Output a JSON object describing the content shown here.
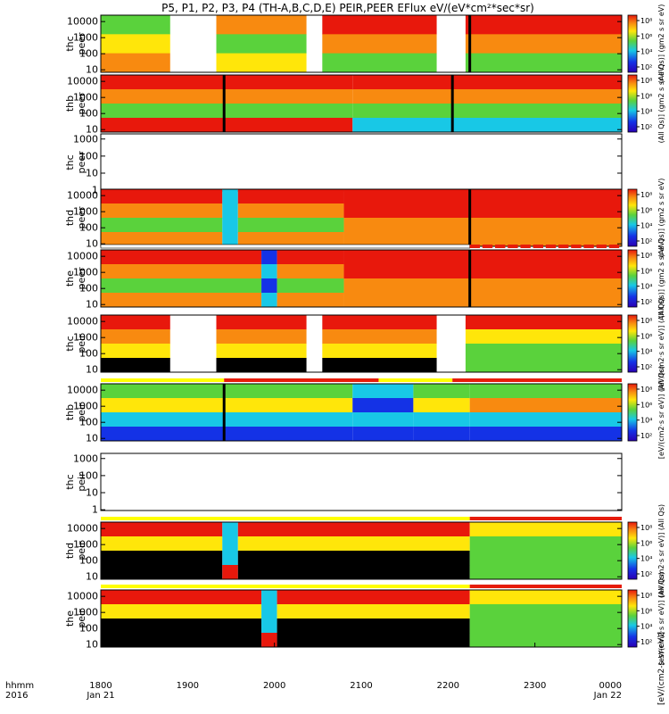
{
  "title": "P5, P1, P2, P3, P4 (TH-A,B,C,D,E) PEIR,PEER EFlux eV/(eV*cm²*sec*sr)",
  "time_axis": {
    "row_label": "hhmm",
    "year_label": "2016",
    "ticks": [
      "1800",
      "1900",
      "2000",
      "2100",
      "2200",
      "2300",
      "0000"
    ],
    "date_labels": [
      "Jan 21",
      "Jan 22"
    ],
    "start_hour": 18.0,
    "end_hour": 24.0
  },
  "y_tick_labels": [
    "10000",
    "1000",
    "100",
    "10",
    "1"
  ],
  "colorbar_tick_labels": [
    "10⁸",
    "10⁶",
    "10⁴",
    "10²"
  ],
  "colorbar_titles": {
    "peer": "(All Qs)] (gm2 s sr eV)",
    "peir": "[eV/(cm2·s sr eV)] (All Qs)"
  },
  "bottom_colorbar_label": "[eV/(cm2-s-sr-eV)]",
  "colors": {
    "black": "#000000",
    "red": "#e8180c",
    "orange": "#f88a10",
    "yellow": "#ffe60a",
    "green": "#5ad23c",
    "cyan": "#18c8e6",
    "blue": "#1432e6",
    "flag_yellow": "#ffff00",
    "flag_red": "#e61c0a"
  },
  "chart_data": {
    "type": "heatmap",
    "x_units": "hhmm (UT), 2016 Jan 21 18:00 to Jan 22 00:00",
    "y_units": "energy (eV), log scale",
    "z_units": "eV/(eV*cm2*sec*sr)",
    "panels": [
      {
        "label": "thc peer",
        "probe": "thc",
        "species": "peer",
        "has_data": true,
        "has_colorbar": true,
        "ylim": [
          7,
          25000
        ],
        "ytick_values": [
          10000,
          1000,
          100,
          10
        ],
        "data_gaps": [
          [
            18.8,
            19.33
          ],
          [
            20.37,
            20.55
          ],
          [
            21.87,
            22.2
          ]
        ],
        "spikes": [
          22.25
        ],
        "color_levels": [
          {
            "start": 18.0,
            "end": 18.8,
            "levels": [
              "green",
              "yellow",
              "orange"
            ]
          },
          {
            "start": 19.33,
            "end": 20.37,
            "levels": [
              "orange",
              "green",
              "yellow"
            ]
          },
          {
            "start": 20.55,
            "end": 21.87,
            "levels": [
              "red",
              "orange",
              "green"
            ]
          },
          {
            "start": 22.2,
            "end": 24.0,
            "levels": [
              "red",
              "orange",
              "green"
            ]
          }
        ]
      },
      {
        "label": "thb peer",
        "probe": "thb",
        "species": "peer",
        "has_data": true,
        "has_colorbar": true,
        "ylim": [
          7,
          25000
        ],
        "ytick_values": [
          10000,
          1000,
          100,
          10
        ],
        "data_gaps": [],
        "spikes": [
          19.42,
          22.05
        ],
        "color_levels": [
          {
            "start": 18.0,
            "end": 20.9,
            "levels": [
              "red",
              "orange",
              "green",
              "red"
            ]
          },
          {
            "start": 20.9,
            "end": 22.5,
            "levels": [
              "red",
              "orange",
              "green",
              "cyan"
            ]
          },
          {
            "start": 22.5,
            "end": 24.0,
            "levels": [
              "red",
              "orange",
              "green",
              "cyan"
            ]
          }
        ]
      },
      {
        "label": "thc peer",
        "probe": "thc",
        "species": "peer",
        "has_data": false,
        "has_colorbar": false,
        "ylim": [
          0.9,
          2000
        ],
        "ytick_values": [
          1000,
          100,
          10,
          1
        ],
        "data_gaps": [],
        "spikes": [],
        "color_levels": []
      },
      {
        "label": "thd peer",
        "probe": "thd",
        "species": "peer",
        "has_data": true,
        "has_colorbar": true,
        "ylim": [
          7,
          25000
        ],
        "ytick_values": [
          10000,
          1000,
          100,
          10
        ],
        "data_gaps": [],
        "spikes": [
          22.25
        ],
        "color_levels": [
          {
            "start": 18.0,
            "end": 19.4,
            "levels": [
              "red",
              "orange",
              "green",
              "orange"
            ]
          },
          {
            "start": 19.4,
            "end": 19.58,
            "levels": [
              "cyan",
              "cyan",
              "cyan",
              "cyan"
            ]
          },
          {
            "start": 19.58,
            "end": 20.8,
            "levels": [
              "red",
              "orange",
              "green",
              "orange"
            ]
          },
          {
            "start": 20.8,
            "end": 24.0,
            "levels": [
              "red",
              "red",
              "orange",
              "orange"
            ]
          }
        ]
      },
      {
        "label": "the peer",
        "probe": "the",
        "species": "peer",
        "has_data": true,
        "has_colorbar": true,
        "ylim": [
          7,
          25000
        ],
        "ytick_values": [
          10000,
          1000,
          100,
          10
        ],
        "data_gaps": [],
        "spikes": [
          22.25
        ],
        "color_levels": [
          {
            "start": 18.0,
            "end": 19.85,
            "levels": [
              "red",
              "orange",
              "green",
              "orange"
            ]
          },
          {
            "start": 19.85,
            "end": 20.03,
            "levels": [
              "blue",
              "cyan",
              "blue",
              "cyan"
            ]
          },
          {
            "start": 20.03,
            "end": 20.8,
            "levels": [
              "red",
              "orange",
              "green",
              "orange"
            ]
          },
          {
            "start": 20.8,
            "end": 24.0,
            "levels": [
              "red",
              "red",
              "orange",
              "orange"
            ]
          }
        ]
      },
      {
        "label": "thc peir",
        "probe": "thc",
        "species": "peir",
        "has_data": true,
        "has_colorbar": true,
        "ylim": [
          7,
          25000
        ],
        "ytick_values": [
          10000,
          1000,
          100,
          10
        ],
        "data_gaps": [
          [
            18.8,
            19.33
          ],
          [
            20.37,
            20.55
          ],
          [
            21.87,
            22.2
          ]
        ],
        "spikes": [],
        "color_levels": [
          {
            "start": 18.0,
            "end": 18.8,
            "levels": [
              "red",
              "orange",
              "yellow",
              "black"
            ]
          },
          {
            "start": 19.33,
            "end": 20.37,
            "levels": [
              "red",
              "orange",
              "yellow",
              "black"
            ]
          },
          {
            "start": 20.55,
            "end": 21.87,
            "levels": [
              "red",
              "orange",
              "yellow",
              "black"
            ]
          },
          {
            "start": 22.2,
            "end": 24.0,
            "levels": [
              "red",
              "yellow",
              "green",
              "green"
            ]
          }
        ]
      },
      {
        "label": "thb peir",
        "probe": "thb",
        "species": "peir",
        "has_data": true,
        "has_colorbar": true,
        "ylim": [
          7,
          25000
        ],
        "ytick_values": [
          10000,
          1000,
          100,
          10
        ],
        "data_gaps": [],
        "spikes": [
          19.42
        ],
        "color_levels": [
          {
            "start": 18.0,
            "end": 20.9,
            "levels": [
              "green",
              "yellow",
              "cyan",
              "blue"
            ]
          },
          {
            "start": 20.9,
            "end": 21.6,
            "levels": [
              "cyan",
              "blue",
              "cyan",
              "blue"
            ]
          },
          {
            "start": 21.6,
            "end": 22.25,
            "levels": [
              "green",
              "yellow",
              "cyan",
              "blue"
            ]
          },
          {
            "start": 22.25,
            "end": 24.0,
            "levels": [
              "green",
              "orange",
              "cyan",
              "blue"
            ]
          }
        ]
      },
      {
        "label": "thc peir",
        "probe": "thc",
        "species": "peir",
        "has_data": false,
        "has_colorbar": false,
        "ylim": [
          0.9,
          2000
        ],
        "ytick_values": [
          1000,
          100,
          10,
          1
        ],
        "data_gaps": [],
        "spikes": [],
        "color_levels": []
      },
      {
        "label": "thd peir",
        "probe": "thd",
        "species": "peir",
        "has_data": true,
        "has_colorbar": true,
        "ylim": [
          7,
          25000
        ],
        "ytick_values": [
          10000,
          1000,
          100,
          10
        ],
        "data_gaps": [],
        "spikes": [],
        "color_levels": [
          {
            "start": 18.0,
            "end": 19.4,
            "levels": [
              "red",
              "yellow",
              "black",
              "black"
            ]
          },
          {
            "start": 19.4,
            "end": 19.58,
            "levels": [
              "cyan",
              "cyan",
              "cyan",
              "red"
            ]
          },
          {
            "start": 19.58,
            "end": 22.25,
            "levels": [
              "red",
              "yellow",
              "black",
              "black"
            ]
          },
          {
            "start": 22.25,
            "end": 24.0,
            "levels": [
              "yellow",
              "green",
              "green",
              "green"
            ]
          }
        ]
      },
      {
        "label": "the peir",
        "probe": "the",
        "species": "peir",
        "has_data": true,
        "has_colorbar": true,
        "ylim": [
          7,
          25000
        ],
        "ytick_values": [
          10000,
          1000,
          100,
          10
        ],
        "data_gaps": [],
        "spikes": [],
        "color_levels": [
          {
            "start": 18.0,
            "end": 19.85,
            "levels": [
              "red",
              "yellow",
              "black",
              "black"
            ]
          },
          {
            "start": 19.85,
            "end": 20.03,
            "levels": [
              "cyan",
              "cyan",
              "cyan",
              "red"
            ]
          },
          {
            "start": 20.03,
            "end": 22.25,
            "levels": [
              "red",
              "yellow",
              "black",
              "black"
            ]
          },
          {
            "start": 22.25,
            "end": 24.0,
            "levels": [
              "yellow",
              "green",
              "green",
              "green"
            ]
          }
        ]
      }
    ],
    "mode_flags": [
      {
        "above_panel": 4,
        "segments": [
          [
            22.25,
            24.0,
            "flag_red"
          ]
        ],
        "dashed": true
      },
      {
        "above_panel": 6,
        "segments": [
          [
            18.0,
            19.42,
            "flag_yellow"
          ],
          [
            19.42,
            21.2,
            "flag_red"
          ],
          [
            21.2,
            22.05,
            "flag_yellow"
          ],
          [
            22.05,
            24.0,
            "flag_red"
          ]
        ],
        "dashed": false
      },
      {
        "above_panel": 8,
        "segments": [
          [
            18.0,
            22.25,
            "flag_yellow"
          ],
          [
            22.25,
            24.0,
            "flag_red"
          ]
        ],
        "dashed": false
      },
      {
        "above_panel": 9,
        "segments": [
          [
            18.0,
            22.25,
            "flag_yellow"
          ],
          [
            22.25,
            24.0,
            "flag_red"
          ]
        ],
        "dashed": false
      }
    ]
  }
}
